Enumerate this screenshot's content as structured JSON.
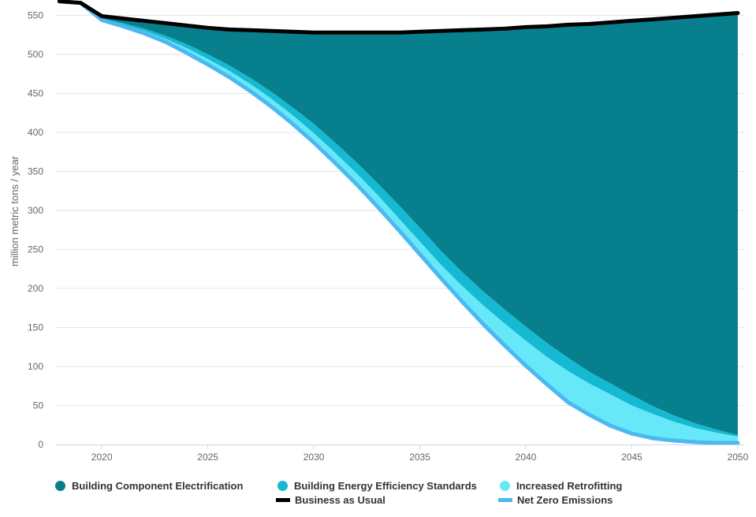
{
  "chart_data": {
    "type": "area",
    "ylabel": "million metric tons / year",
    "xlabel": "",
    "xlim": [
      2017.8,
      2050.3
    ],
    "ylim": [
      0,
      560
    ],
    "x_ticks": [
      2020,
      2025,
      2030,
      2035,
      2040,
      2045,
      2050
    ],
    "y_ticks": [
      0,
      50,
      100,
      150,
      200,
      250,
      300,
      350,
      400,
      450,
      500,
      550
    ],
    "legend_placement": "bottom",
    "x": [
      2018,
      2019,
      2020,
      2021,
      2022,
      2023,
      2024,
      2025,
      2026,
      2027,
      2028,
      2029,
      2030,
      2031,
      2032,
      2033,
      2034,
      2035,
      2036,
      2037,
      2038,
      2039,
      2040,
      2041,
      2042,
      2043,
      2044,
      2045,
      2046,
      2047,
      2048,
      2049,
      2050
    ],
    "series": [
      {
        "name": "Business as Usual",
        "kind": "line",
        "color": "#000000",
        "values": [
          568,
          566,
          549,
          546,
          543,
          540,
          537,
          534,
          532,
          531,
          530,
          529,
          528,
          528,
          528,
          528,
          528,
          529,
          530,
          531,
          532,
          533,
          535,
          536,
          538,
          539,
          541,
          543,
          545,
          547,
          549,
          551,
          553
        ]
      },
      {
        "name": "Building Component Electrification",
        "kind": "area",
        "color": "#087f8c",
        "upper": "Business as Usual",
        "lower": "Building Energy Efficiency Standards"
      },
      {
        "name": "Building Energy Efficiency Standards",
        "kind": "area",
        "color": "#16b9d2",
        "upper_values": [
          568,
          566,
          546,
          540,
          533,
          524,
          513,
          500,
          486,
          470,
          452,
          432,
          411,
          387,
          362,
          335,
          307,
          278,
          248,
          221,
          196,
          173,
          151,
          130,
          111,
          93,
          78,
          63,
          49,
          37,
          27,
          19,
          12
        ]
      },
      {
        "name": "Increased Retrofitting",
        "kind": "area",
        "color": "#67e8f9",
        "upper_values": [
          568,
          566,
          545,
          538,
          530,
          520,
          508,
          494,
          479,
          462,
          443,
          422,
          399,
          374,
          348,
          320,
          290,
          260,
          230,
          203,
          178,
          155,
          133,
          112,
          94,
          78,
          64,
          50,
          39,
          29,
          21,
          15,
          10
        ]
      },
      {
        "name": "Net Zero Emissions",
        "kind": "line",
        "color": "#4cb8f0",
        "values": [
          568,
          566,
          544,
          536,
          527,
          516,
          502,
          487,
          471,
          453,
          433,
          411,
          387,
          361,
          334,
          305,
          275,
          244,
          213,
          183,
          154,
          127,
          101,
          77,
          54,
          38,
          24,
          14,
          8,
          5,
          3,
          2,
          2
        ]
      }
    ],
    "legend": [
      {
        "name": "Building Component Electrification",
        "marker": "dot",
        "color": "#087f8c"
      },
      {
        "name": "Building Energy Efficiency Standards",
        "marker": "dot",
        "color": "#16b9d2"
      },
      {
        "name": "Increased Retrofitting",
        "marker": "dot",
        "color": "#67e8f9"
      },
      {
        "name": "Business as Usual",
        "marker": "line",
        "color": "#000000"
      },
      {
        "name": "Net Zero Emissions",
        "marker": "line",
        "color": "#4cb8f0"
      }
    ]
  }
}
